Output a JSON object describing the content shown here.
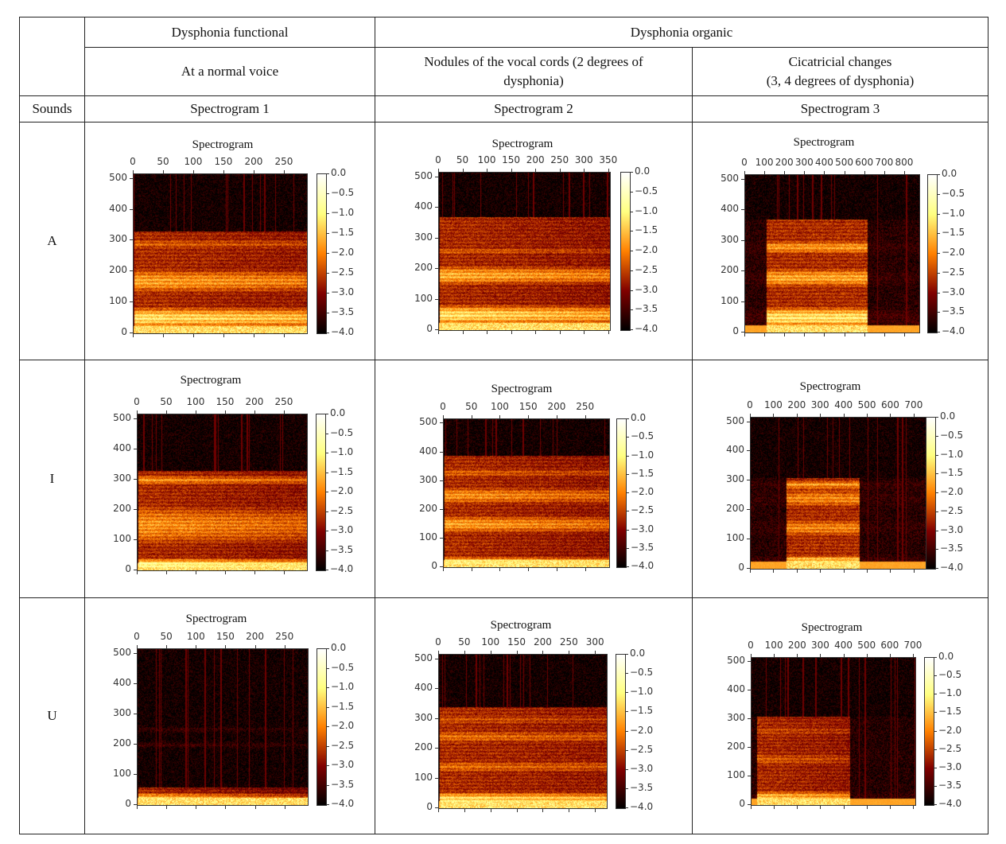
{
  "table": {
    "header": {
      "functional": "Dysphonia functional",
      "organic": "Dysphonia organic",
      "normal_voice": "At a normal voice",
      "nodules": "Nodules of the vocal cords (2 degrees of dysphonia)",
      "cicatricial_line1": "Cicatricial changes",
      "cicatricial_line2": "(3, 4 degrees of dysphonia)",
      "sounds": "Sounds",
      "spec1": "Spectrogram 1",
      "spec2": "Spectrogram 2",
      "spec3": "Spectrogram 3"
    },
    "rows": [
      {
        "sound": "A"
      },
      {
        "sound": "I"
      },
      {
        "sound": "U"
      }
    ]
  },
  "plot_common": {
    "title": "Spectrogram",
    "y_ticks": [
      "0",
      "100",
      "200",
      "300",
      "400",
      "500"
    ],
    "y_range": [
      0,
      515
    ],
    "colorbar_ticks": [
      "0.0",
      "−0.5",
      "−1.0",
      "−1.5",
      "−2.0",
      "−2.5",
      "−3.0",
      "−3.5",
      "−4.0"
    ],
    "colorbar_range": [
      -4.0,
      0.0
    ],
    "colormap": "afmhot"
  },
  "plots": [
    {
      "sound": "A",
      "column": 1,
      "x_ticks": [
        "0",
        "50",
        "100",
        "150",
        "200",
        "250"
      ],
      "x_step": 50,
      "x_range": [
        0,
        287
      ]
    },
    {
      "sound": "A",
      "column": 2,
      "x_ticks": [
        "0",
        "50",
        "100",
        "150",
        "200",
        "250",
        "300",
        "350"
      ],
      "x_step": 50,
      "x_range": [
        0,
        352
      ]
    },
    {
      "sound": "A",
      "column": 3,
      "x_ticks": [
        "0",
        "100",
        "200",
        "300",
        "400",
        "500",
        "600",
        "700",
        "800"
      ],
      "x_step": 100,
      "x_range": [
        0,
        872
      ]
    },
    {
      "sound": "I",
      "column": 1,
      "x_ticks": [
        "0",
        "50",
        "100",
        "150",
        "200",
        "250"
      ],
      "x_step": 50,
      "x_range": [
        0,
        288
      ]
    },
    {
      "sound": "I",
      "column": 2,
      "x_ticks": [
        "0",
        "50",
        "100",
        "150",
        "200",
        "250"
      ],
      "x_step": 50,
      "x_range": [
        0,
        291
      ]
    },
    {
      "sound": "I",
      "column": 3,
      "x_ticks": [
        "0",
        "100",
        "200",
        "300",
        "400",
        "500",
        "600",
        "700"
      ],
      "x_step": 100,
      "x_range": [
        0,
        748
      ]
    },
    {
      "sound": "U",
      "column": 1,
      "x_ticks": [
        "0",
        "50",
        "100",
        "150",
        "200",
        "250"
      ],
      "x_step": 50,
      "x_range": [
        0,
        288
      ]
    },
    {
      "sound": "U",
      "column": 2,
      "x_ticks": [
        "0",
        "50",
        "100",
        "150",
        "200",
        "250",
        "300"
      ],
      "x_step": 50,
      "x_range": [
        0,
        321
      ]
    },
    {
      "sound": "U",
      "column": 3,
      "x_ticks": [
        "0",
        "100",
        "200",
        "300",
        "400",
        "500",
        "600",
        "700"
      ],
      "x_step": 100,
      "x_range": [
        0,
        707
      ]
    }
  ]
}
